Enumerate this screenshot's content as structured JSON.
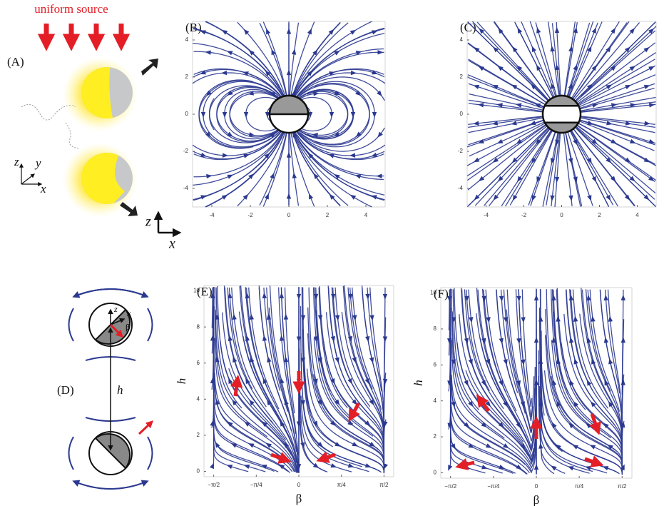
{
  "panel_labels": [
    "(A)",
    "(B)",
    "(C)",
    "(D)",
    "(E)",
    "(F)"
  ],
  "panel_a": {
    "source_label": "uniform source",
    "triad": [
      "z",
      "y",
      "x"
    ]
  },
  "panel_b": {
    "xlim": [
      -5,
      5
    ],
    "ylim": [
      -5,
      5
    ],
    "xticks": [
      -4,
      -2,
      0,
      2,
      4
    ],
    "yticks": [
      -4,
      -2,
      0,
      2,
      4
    ],
    "frame_axes": [
      "z",
      "x"
    ]
  },
  "panel_c": {
    "xlim": [
      -5,
      5
    ],
    "ylim": [
      -5,
      5
    ],
    "xticks": [
      -4,
      -2,
      0,
      2,
      4
    ],
    "yticks": [
      -4,
      -2,
      0,
      2,
      4
    ]
  },
  "panel_d": {
    "axis_labels": [
      "z",
      "x",
      "β",
      "h"
    ]
  },
  "panel_e": {
    "xlim": [
      -1.75,
      1.75
    ],
    "ylim": [
      -0.3,
      10.3
    ],
    "xticks": [
      {
        "value": -1.5708,
        "label": "−π/2"
      },
      {
        "value": -0.7854,
        "label": "−π/4"
      },
      0,
      {
        "value": 0.7854,
        "label": "π/4"
      },
      {
        "value": 1.5708,
        "label": "π/2"
      }
    ],
    "yticks": [
      0,
      2,
      4,
      6,
      8,
      10
    ],
    "xlabel": "β",
    "ylabel": "h"
  },
  "panel_f": {
    "xlim": [
      -1.75,
      1.75
    ],
    "ylim": [
      -0.3,
      10.3
    ],
    "xticks": [
      {
        "value": -1.5708,
        "label": "−π/2"
      },
      {
        "value": -0.7854,
        "label": "−π/4"
      },
      0,
      {
        "value": 0.7854,
        "label": "π/4"
      },
      {
        "value": 1.5708,
        "label": "π/2"
      }
    ],
    "yticks": [
      0,
      2,
      4,
      6,
      8,
      10
    ],
    "xlabel": "β",
    "ylabel": "h"
  }
}
